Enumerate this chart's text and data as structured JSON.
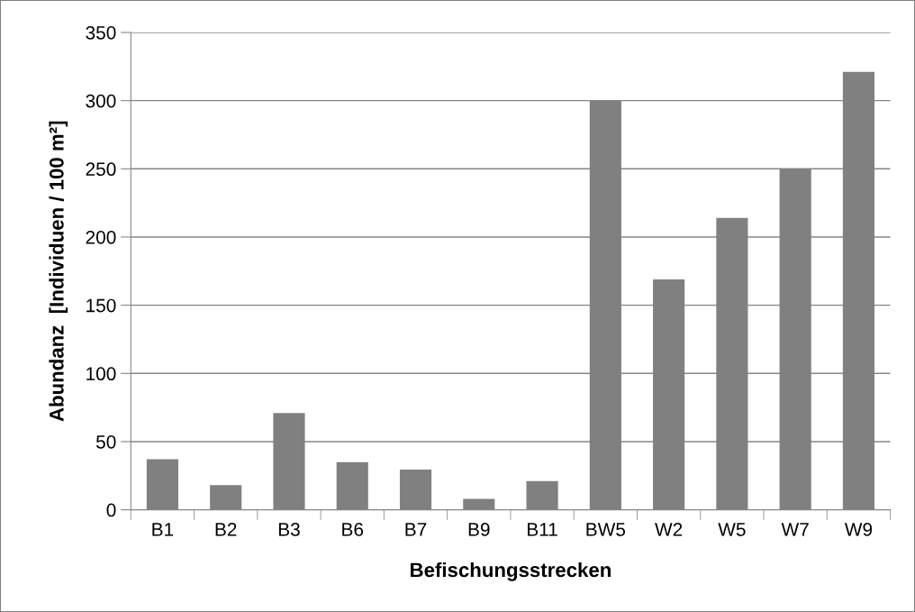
{
  "chart_data": {
    "type": "bar",
    "xlabel": "Befischungsstrecken",
    "ylabel": "Abundanz  [Individuen / 100 m²]",
    "categories": [
      "B1",
      "B2",
      "B3",
      "B6",
      "B7",
      "B9",
      "B11",
      "BW5",
      "W2",
      "W5",
      "W7",
      "W9"
    ],
    "values": [
      37,
      18,
      71,
      35,
      29.5,
      8,
      21,
      300,
      169,
      214,
      250,
      321
    ],
    "color": "#808080",
    "ylim": [
      0,
      350
    ],
    "yticks": [
      0,
      50,
      100,
      150,
      200,
      250,
      300,
      350
    ],
    "grid": "y"
  }
}
